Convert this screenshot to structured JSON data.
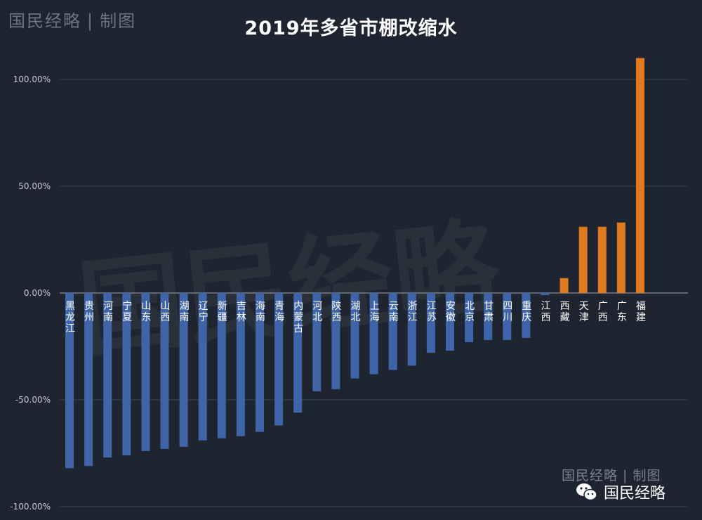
{
  "header": {
    "brand": "国民经略",
    "separator": "|",
    "brand_suffix": "制图",
    "watermark": "国民经略"
  },
  "footer": {
    "brand_stamp": "国民经略 | 制图",
    "wechat_label": "国民经略"
  },
  "colors": {
    "background": "#1f2530",
    "negative_bar": "#3f64a8",
    "positive_bar": "#e07a1f",
    "grid": "#3a424f",
    "axis": "#c8ccd2"
  },
  "chart_data": {
    "type": "bar",
    "title": "2019年多省市棚改缩水",
    "xlabel": "",
    "ylabel": "",
    "ylim": [
      -1.0,
      1.2
    ],
    "yticks": [
      -1.0,
      -0.5,
      0.0,
      0.5,
      1.0
    ],
    "ytick_labels": [
      "-100.00%",
      "-50.00%",
      "0.00%",
      "50.00%",
      "100.00%"
    ],
    "grid": true,
    "categories": [
      "黑龙江",
      "贵州",
      "河南",
      "宁夏",
      "山东",
      "山西",
      "湖南",
      "辽宁",
      "新疆",
      "吉林",
      "海南",
      "青海",
      "内蒙古",
      "河北",
      "陕西",
      "湖北",
      "上海",
      "云南",
      "浙江",
      "江苏",
      "安徽",
      "北京",
      "甘肃",
      "四川",
      "重庆",
      "江西",
      "西藏",
      "天津",
      "广西",
      "广东",
      "福建"
    ],
    "values": [
      -0.82,
      -0.81,
      -0.77,
      -0.76,
      -0.74,
      -0.73,
      -0.72,
      -0.69,
      -0.68,
      -0.67,
      -0.65,
      -0.62,
      -0.56,
      -0.46,
      -0.45,
      -0.4,
      -0.38,
      -0.36,
      -0.34,
      -0.28,
      -0.27,
      -0.23,
      -0.22,
      -0.22,
      -0.21,
      -0.01,
      0.07,
      0.31,
      0.31,
      0.33,
      1.1
    ]
  }
}
